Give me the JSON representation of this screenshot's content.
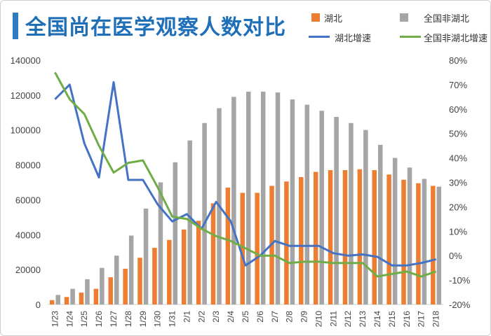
{
  "title": "全国尚在医学观察人数对比",
  "colors": {
    "hubei": "#ed7d31",
    "nonhubei": "#a5a5a5",
    "hubei_growth": "#4472c4",
    "nonhubei_growth": "#70ad47",
    "title": "#1f6fb8"
  },
  "legend": {
    "hubei": "湖北",
    "nonhubei": "全国非湖北",
    "hubei_growth": "湖北增速",
    "nonhubei_growth": "全国非湖北增速"
  },
  "chart_data": {
    "type": "bar",
    "title": "全国尚在医学观察人数对比",
    "categories": [
      "1/23",
      "1/24",
      "1/25",
      "1/26",
      "1/27",
      "1/28",
      "1/29",
      "1/30",
      "1/31",
      "2/1",
      "2/2",
      "2/3",
      "2/4",
      "2/5",
      "2/6",
      "2/7",
      "2/8",
      "2/9",
      "2/10",
      "2/11",
      "2/12",
      "2/13",
      "2/14",
      "2/15",
      "2/16",
      "2/17",
      "2/18"
    ],
    "y_left": {
      "ylim": [
        0,
        140000
      ],
      "ticks": [
        0,
        20000,
        40000,
        60000,
        80000,
        100000,
        120000,
        140000
      ]
    },
    "y_right": {
      "ylim": [
        -20,
        80
      ],
      "ticks": [
        -20,
        -10,
        0,
        10,
        20,
        30,
        40,
        50,
        60,
        70,
        80
      ],
      "unit": "%"
    },
    "legend_position": "top-right",
    "series": [
      {
        "name": "湖北",
        "type": "bar",
        "axis": "left",
        "values": [
          2500,
          4300,
          6800,
          9000,
          15600,
          20500,
          26800,
          32500,
          37000,
          43000,
          48000,
          58000,
          67000,
          64000,
          64000,
          68000,
          70500,
          73000,
          76000,
          77000,
          77000,
          77500,
          77000,
          74500,
          71500,
          69500,
          68000
        ]
      },
      {
        "name": "全国非湖北",
        "type": "bar",
        "axis": "left",
        "values": [
          5500,
          9000,
          14500,
          21000,
          28000,
          39500,
          55000,
          70000,
          81500,
          94000,
          104000,
          112500,
          119000,
          122000,
          122000,
          121500,
          117500,
          114500,
          111000,
          107500,
          104000,
          100000,
          91500,
          84000,
          78500,
          72000,
          67500
        ]
      },
      {
        "name": "湖北增速",
        "type": "line",
        "axis": "right",
        "values": [
          64,
          70,
          46,
          32,
          71,
          31,
          31,
          21,
          14,
          17,
          11,
          22,
          14,
          -4,
          0,
          6,
          4,
          4,
          4,
          1,
          0,
          0.5,
          -0.5,
          -4,
          -4,
          -3,
          -1.5
        ]
      },
      {
        "name": "全国非湖北增速",
        "type": "line",
        "axis": "right",
        "values": [
          75,
          64,
          58,
          45,
          34,
          38,
          39,
          28,
          16,
          15,
          11,
          8,
          6,
          3,
          0,
          0,
          -3,
          -2.5,
          -2.5,
          -3,
          -3,
          -3,
          -8.5,
          -7.5,
          -6.5,
          -8.5,
          -6.5
        ]
      }
    ]
  }
}
